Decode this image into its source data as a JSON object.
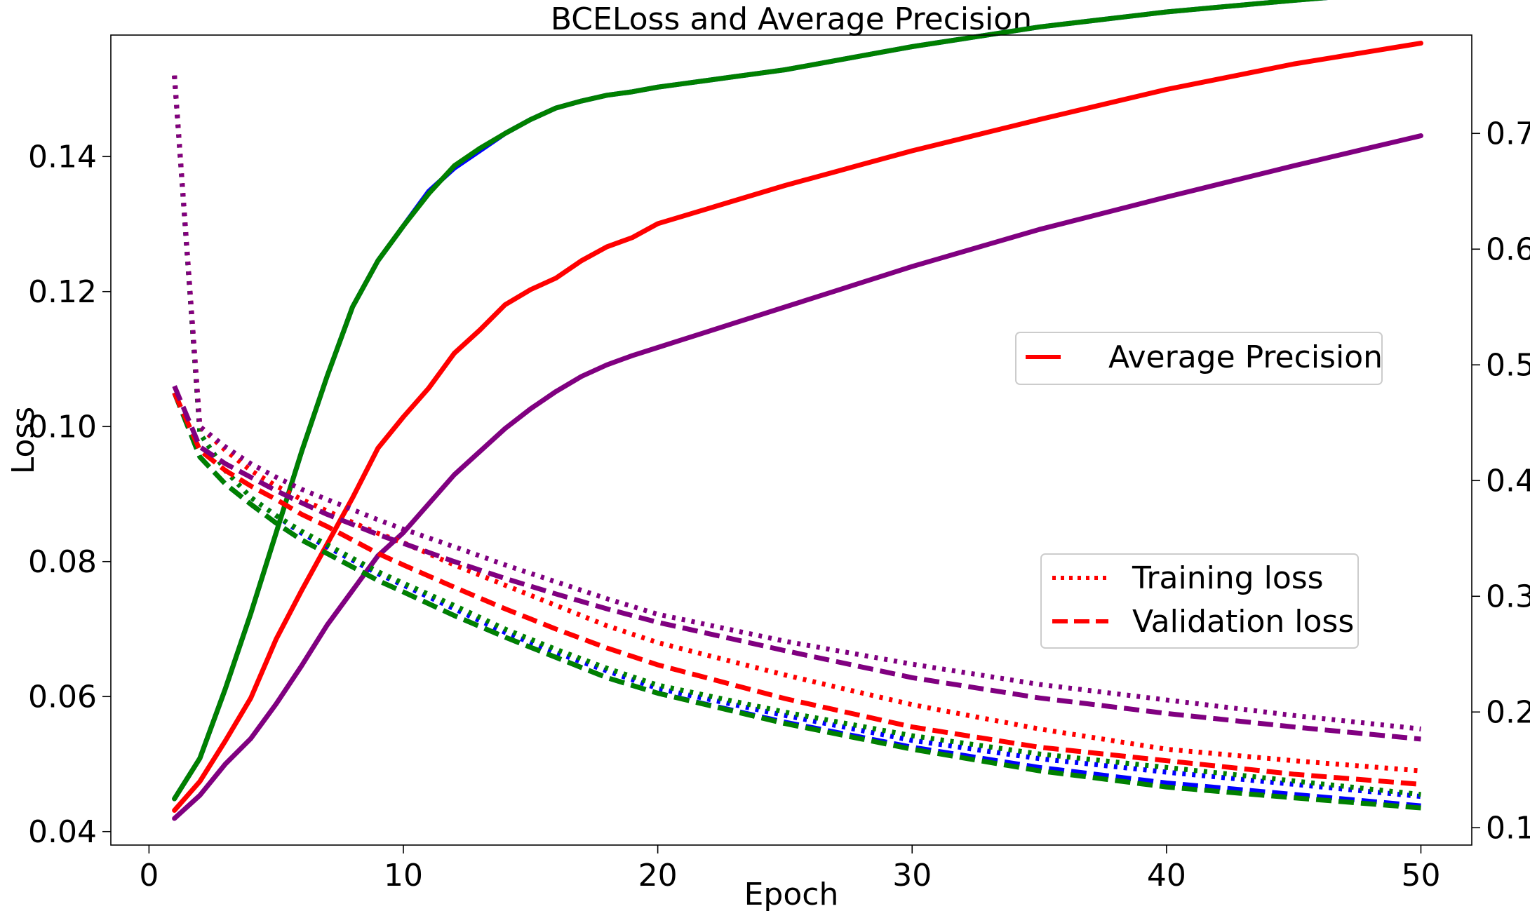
{
  "chart_data": {
    "type": "line",
    "title": "BCELoss and Average Precision",
    "xlabel": "Epoch",
    "ylabel": "Loss",
    "y2label": "",
    "xlim": [
      -1.5,
      52
    ],
    "ylim": [
      0.038,
      0.158
    ],
    "y2lim": [
      0.085,
      0.785
    ],
    "xticks": [
      0,
      10,
      20,
      30,
      40,
      50
    ],
    "yticks": [
      0.04,
      0.06,
      0.08,
      0.1,
      0.12,
      0.14
    ],
    "y2ticks": [
      0.1,
      0.2,
      0.3,
      0.4,
      0.5,
      0.6,
      0.7
    ],
    "legend_ap": {
      "label": "Average Precision",
      "position": "center-right",
      "color": "#ff0000"
    },
    "legend_loss": {
      "position": "right",
      "items": [
        {
          "label": "Training loss",
          "style": "dotted",
          "color": "#ff0000"
        },
        {
          "label": "Validation loss",
          "style": "dashed",
          "color": "#ff0000"
        }
      ]
    },
    "series": [
      {
        "color": "#0000ff",
        "kind": "ap",
        "axis": "right",
        "anchors": [
          [
            1,
            0.125
          ],
          [
            2,
            0.16
          ],
          [
            3,
            0.22
          ],
          [
            4,
            0.285
          ],
          [
            5,
            0.355
          ],
          [
            6,
            0.425
          ],
          [
            7,
            0.49
          ],
          [
            8,
            0.55
          ],
          [
            9,
            0.59
          ],
          [
            10,
            0.62
          ],
          [
            11,
            0.65
          ],
          [
            12,
            0.67
          ],
          [
            13,
            0.685
          ],
          [
            14,
            0.7
          ],
          [
            15,
            0.712
          ],
          [
            16,
            0.722
          ],
          [
            17,
            0.728
          ],
          [
            18,
            0.733
          ],
          [
            19,
            0.736
          ],
          [
            20,
            0.74
          ],
          [
            25,
            0.755
          ],
          [
            30,
            0.775
          ],
          [
            35,
            0.792
          ],
          [
            40,
            0.805
          ],
          [
            45,
            0.815
          ],
          [
            50,
            0.824
          ]
        ]
      },
      {
        "color": "#008000",
        "kind": "ap",
        "axis": "right",
        "anchors": [
          [
            1,
            0.125
          ],
          [
            2,
            0.16
          ],
          [
            3,
            0.22
          ],
          [
            4,
            0.285
          ],
          [
            5,
            0.355
          ],
          [
            6,
            0.425
          ],
          [
            7,
            0.49
          ],
          [
            8,
            0.55
          ],
          [
            9,
            0.59
          ],
          [
            10,
            0.62
          ],
          [
            11,
            0.648
          ],
          [
            12,
            0.672
          ],
          [
            13,
            0.687
          ],
          [
            14,
            0.7
          ],
          [
            15,
            0.712
          ],
          [
            16,
            0.722
          ],
          [
            17,
            0.728
          ],
          [
            18,
            0.733
          ],
          [
            19,
            0.736
          ],
          [
            20,
            0.74
          ],
          [
            25,
            0.755
          ],
          [
            30,
            0.775
          ],
          [
            35,
            0.792
          ],
          [
            40,
            0.805
          ],
          [
            45,
            0.815
          ],
          [
            50,
            0.824
          ]
        ]
      },
      {
        "color": "#ff0000",
        "kind": "ap",
        "axis": "right",
        "anchors": [
          [
            1,
            0.115
          ],
          [
            2,
            0.14
          ],
          [
            3,
            0.175
          ],
          [
            4,
            0.212
          ],
          [
            5,
            0.263
          ],
          [
            6,
            0.305
          ],
          [
            7,
            0.345
          ],
          [
            8,
            0.385
          ],
          [
            9,
            0.428
          ],
          [
            10,
            0.455
          ],
          [
            11,
            0.48
          ],
          [
            12,
            0.51
          ],
          [
            13,
            0.53
          ],
          [
            14,
            0.552
          ],
          [
            15,
            0.565
          ],
          [
            16,
            0.575
          ],
          [
            17,
            0.59
          ],
          [
            18,
            0.602
          ],
          [
            19,
            0.61
          ],
          [
            20,
            0.622
          ],
          [
            25,
            0.655
          ],
          [
            30,
            0.685
          ],
          [
            35,
            0.712
          ],
          [
            40,
            0.738
          ],
          [
            45,
            0.76
          ],
          [
            50,
            0.778
          ]
        ]
      },
      {
        "color": "#800080",
        "kind": "ap",
        "axis": "right",
        "anchors": [
          [
            1,
            0.108
          ],
          [
            2,
            0.128
          ],
          [
            3,
            0.155
          ],
          [
            4,
            0.177
          ],
          [
            5,
            0.207
          ],
          [
            6,
            0.24
          ],
          [
            7,
            0.275
          ],
          [
            8,
            0.305
          ],
          [
            9,
            0.335
          ],
          [
            10,
            0.355
          ],
          [
            11,
            0.38
          ],
          [
            12,
            0.405
          ],
          [
            13,
            0.425
          ],
          [
            14,
            0.445
          ],
          [
            15,
            0.462
          ],
          [
            16,
            0.477
          ],
          [
            17,
            0.49
          ],
          [
            18,
            0.5
          ],
          [
            19,
            0.508
          ],
          [
            20,
            0.515
          ],
          [
            25,
            0.55
          ],
          [
            30,
            0.585
          ],
          [
            35,
            0.617
          ],
          [
            40,
            0.645
          ],
          [
            45,
            0.672
          ],
          [
            50,
            0.698
          ]
        ]
      },
      {
        "color": "#0000ff",
        "kind": "train",
        "axis": "left",
        "anchors": [
          [
            1,
            0.152
          ],
          [
            2,
            0.099
          ],
          [
            3,
            0.0935
          ],
          [
            4,
            0.0895
          ],
          [
            5,
            0.0868
          ],
          [
            6,
            0.0842
          ],
          [
            7,
            0.0822
          ],
          [
            8,
            0.0802
          ],
          [
            9,
            0.0782
          ],
          [
            10,
            0.0765
          ],
          [
            12,
            0.073
          ],
          [
            14,
            0.0695
          ],
          [
            16,
            0.0665
          ],
          [
            18,
            0.0638
          ],
          [
            20,
            0.0612
          ],
          [
            25,
            0.0572
          ],
          [
            30,
            0.0535
          ],
          [
            35,
            0.0508
          ],
          [
            40,
            0.0488
          ],
          [
            45,
            0.047
          ],
          [
            50,
            0.0452
          ]
        ]
      },
      {
        "color": "#008000",
        "kind": "train",
        "axis": "left",
        "anchors": [
          [
            1,
            0.152
          ],
          [
            2,
            0.099
          ],
          [
            3,
            0.0935
          ],
          [
            4,
            0.0895
          ],
          [
            5,
            0.0868
          ],
          [
            6,
            0.0845
          ],
          [
            7,
            0.0825
          ],
          [
            8,
            0.0805
          ],
          [
            9,
            0.0785
          ],
          [
            10,
            0.0768
          ],
          [
            12,
            0.0735
          ],
          [
            14,
            0.07
          ],
          [
            16,
            0.067
          ],
          [
            18,
            0.0642
          ],
          [
            20,
            0.0617
          ],
          [
            25,
            0.0577
          ],
          [
            30,
            0.0542
          ],
          [
            35,
            0.0515
          ],
          [
            40,
            0.0495
          ],
          [
            45,
            0.0475
          ],
          [
            50,
            0.0455
          ]
        ]
      },
      {
        "color": "#ff0000",
        "kind": "train",
        "axis": "left",
        "anchors": [
          [
            1,
            0.152
          ],
          [
            2,
            0.1
          ],
          [
            3,
            0.0965
          ],
          [
            4,
            0.0935
          ],
          [
            5,
            0.0912
          ],
          [
            6,
            0.0892
          ],
          [
            7,
            0.0875
          ],
          [
            8,
            0.0858
          ],
          [
            9,
            0.0842
          ],
          [
            10,
            0.0828
          ],
          [
            12,
            0.0795
          ],
          [
            14,
            0.0765
          ],
          [
            16,
            0.0735
          ],
          [
            18,
            0.0705
          ],
          [
            20,
            0.068
          ],
          [
            25,
            0.0632
          ],
          [
            30,
            0.0588
          ],
          [
            35,
            0.0552
          ],
          [
            40,
            0.0522
          ],
          [
            45,
            0.0505
          ],
          [
            50,
            0.049
          ]
        ]
      },
      {
        "color": "#800080",
        "kind": "train",
        "axis": "left",
        "anchors": [
          [
            1,
            0.152
          ],
          [
            2,
            0.1
          ],
          [
            3,
            0.097
          ],
          [
            4,
            0.0945
          ],
          [
            5,
            0.0925
          ],
          [
            6,
            0.0907
          ],
          [
            7,
            0.0892
          ],
          [
            8,
            0.0877
          ],
          [
            9,
            0.0862
          ],
          [
            10,
            0.0848
          ],
          [
            12,
            0.0822
          ],
          [
            14,
            0.0795
          ],
          [
            16,
            0.077
          ],
          [
            18,
            0.0745
          ],
          [
            20,
            0.0722
          ],
          [
            25,
            0.0682
          ],
          [
            30,
            0.0648
          ],
          [
            35,
            0.0618
          ],
          [
            40,
            0.0595
          ],
          [
            45,
            0.0572
          ],
          [
            50,
            0.0552
          ]
        ]
      },
      {
        "color": "#0000ff",
        "kind": "val",
        "axis": "left",
        "anchors": [
          [
            1,
            0.105
          ],
          [
            2,
            0.0955
          ],
          [
            3,
            0.0915
          ],
          [
            4,
            0.0885
          ],
          [
            5,
            0.0857
          ],
          [
            6,
            0.0832
          ],
          [
            7,
            0.0812
          ],
          [
            8,
            0.0792
          ],
          [
            9,
            0.0772
          ],
          [
            10,
            0.0755
          ],
          [
            12,
            0.072
          ],
          [
            14,
            0.0688
          ],
          [
            16,
            0.0658
          ],
          [
            18,
            0.0628
          ],
          [
            20,
            0.0605
          ],
          [
            25,
            0.0562
          ],
          [
            30,
            0.0525
          ],
          [
            35,
            0.0495
          ],
          [
            40,
            0.0472
          ],
          [
            45,
            0.0455
          ],
          [
            50,
            0.0438
          ]
        ]
      },
      {
        "color": "#008000",
        "kind": "val",
        "axis": "left",
        "anchors": [
          [
            1,
            0.105
          ],
          [
            2,
            0.0955
          ],
          [
            3,
            0.0915
          ],
          [
            4,
            0.0885
          ],
          [
            5,
            0.0857
          ],
          [
            6,
            0.0832
          ],
          [
            7,
            0.0812
          ],
          [
            8,
            0.0792
          ],
          [
            9,
            0.0772
          ],
          [
            10,
            0.0755
          ],
          [
            12,
            0.072
          ],
          [
            14,
            0.0688
          ],
          [
            16,
            0.0658
          ],
          [
            18,
            0.0628
          ],
          [
            20,
            0.0605
          ],
          [
            25,
            0.056
          ],
          [
            30,
            0.0522
          ],
          [
            35,
            0.049
          ],
          [
            40,
            0.0466
          ],
          [
            45,
            0.045
          ],
          [
            50,
            0.0435
          ]
        ]
      },
      {
        "color": "#ff0000",
        "kind": "val",
        "axis": "left",
        "anchors": [
          [
            1,
            0.105
          ],
          [
            2,
            0.0965
          ],
          [
            3,
            0.0935
          ],
          [
            4,
            0.0912
          ],
          [
            5,
            0.0892
          ],
          [
            6,
            0.087
          ],
          [
            7,
            0.0852
          ],
          [
            8,
            0.0832
          ],
          [
            9,
            0.0812
          ],
          [
            10,
            0.0795
          ],
          [
            12,
            0.0762
          ],
          [
            14,
            0.073
          ],
          [
            16,
            0.07
          ],
          [
            18,
            0.0672
          ],
          [
            20,
            0.0647
          ],
          [
            25,
            0.0597
          ],
          [
            30,
            0.0555
          ],
          [
            35,
            0.0525
          ],
          [
            40,
            0.0505
          ],
          [
            45,
            0.0485
          ],
          [
            50,
            0.047
          ]
        ]
      },
      {
        "color": "#800080",
        "kind": "val",
        "axis": "left",
        "anchors": [
          [
            1,
            0.106
          ],
          [
            2,
            0.097
          ],
          [
            3,
            0.0945
          ],
          [
            4,
            0.0925
          ],
          [
            5,
            0.0905
          ],
          [
            6,
            0.0887
          ],
          [
            7,
            0.087
          ],
          [
            8,
            0.0855
          ],
          [
            9,
            0.084
          ],
          [
            10,
            0.0827
          ],
          [
            12,
            0.08
          ],
          [
            14,
            0.0775
          ],
          [
            16,
            0.0752
          ],
          [
            18,
            0.073
          ],
          [
            20,
            0.071
          ],
          [
            25,
            0.0668
          ],
          [
            30,
            0.0628
          ],
          [
            35,
            0.0598
          ],
          [
            40,
            0.0575
          ],
          [
            45,
            0.0555
          ],
          [
            50,
            0.0537
          ]
        ]
      }
    ]
  }
}
